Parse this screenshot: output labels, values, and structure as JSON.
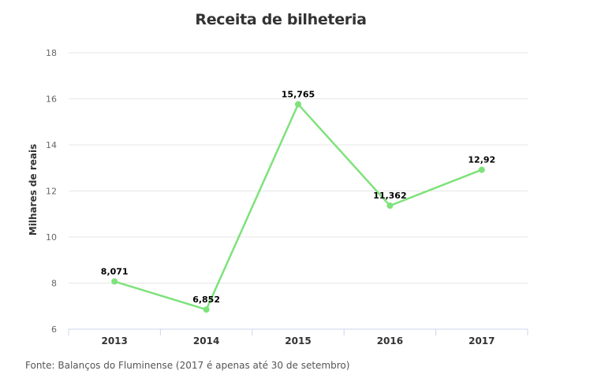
{
  "chart_data": {
    "type": "line",
    "title": "Receita de bilheteria",
    "xlabel": "",
    "ylabel": "Milhares de reais",
    "categories": [
      "2013",
      "2014",
      "2015",
      "2016",
      "2017"
    ],
    "series": [
      {
        "values": [
          8.071,
          6.852,
          15.765,
          11.362,
          12.92
        ],
        "labels": [
          "8,071",
          "6,852",
          "15,765",
          "11,362",
          "12,92"
        ],
        "color": "#7ee27a"
      }
    ],
    "ylim": [
      6,
      18
    ],
    "yticks": [
      6,
      8,
      10,
      12,
      14,
      16,
      18
    ],
    "grid": true,
    "legend": "none"
  },
  "source": "Fonte: Balanços do Fluminense (2017 é apenas até 30 de setembro)"
}
